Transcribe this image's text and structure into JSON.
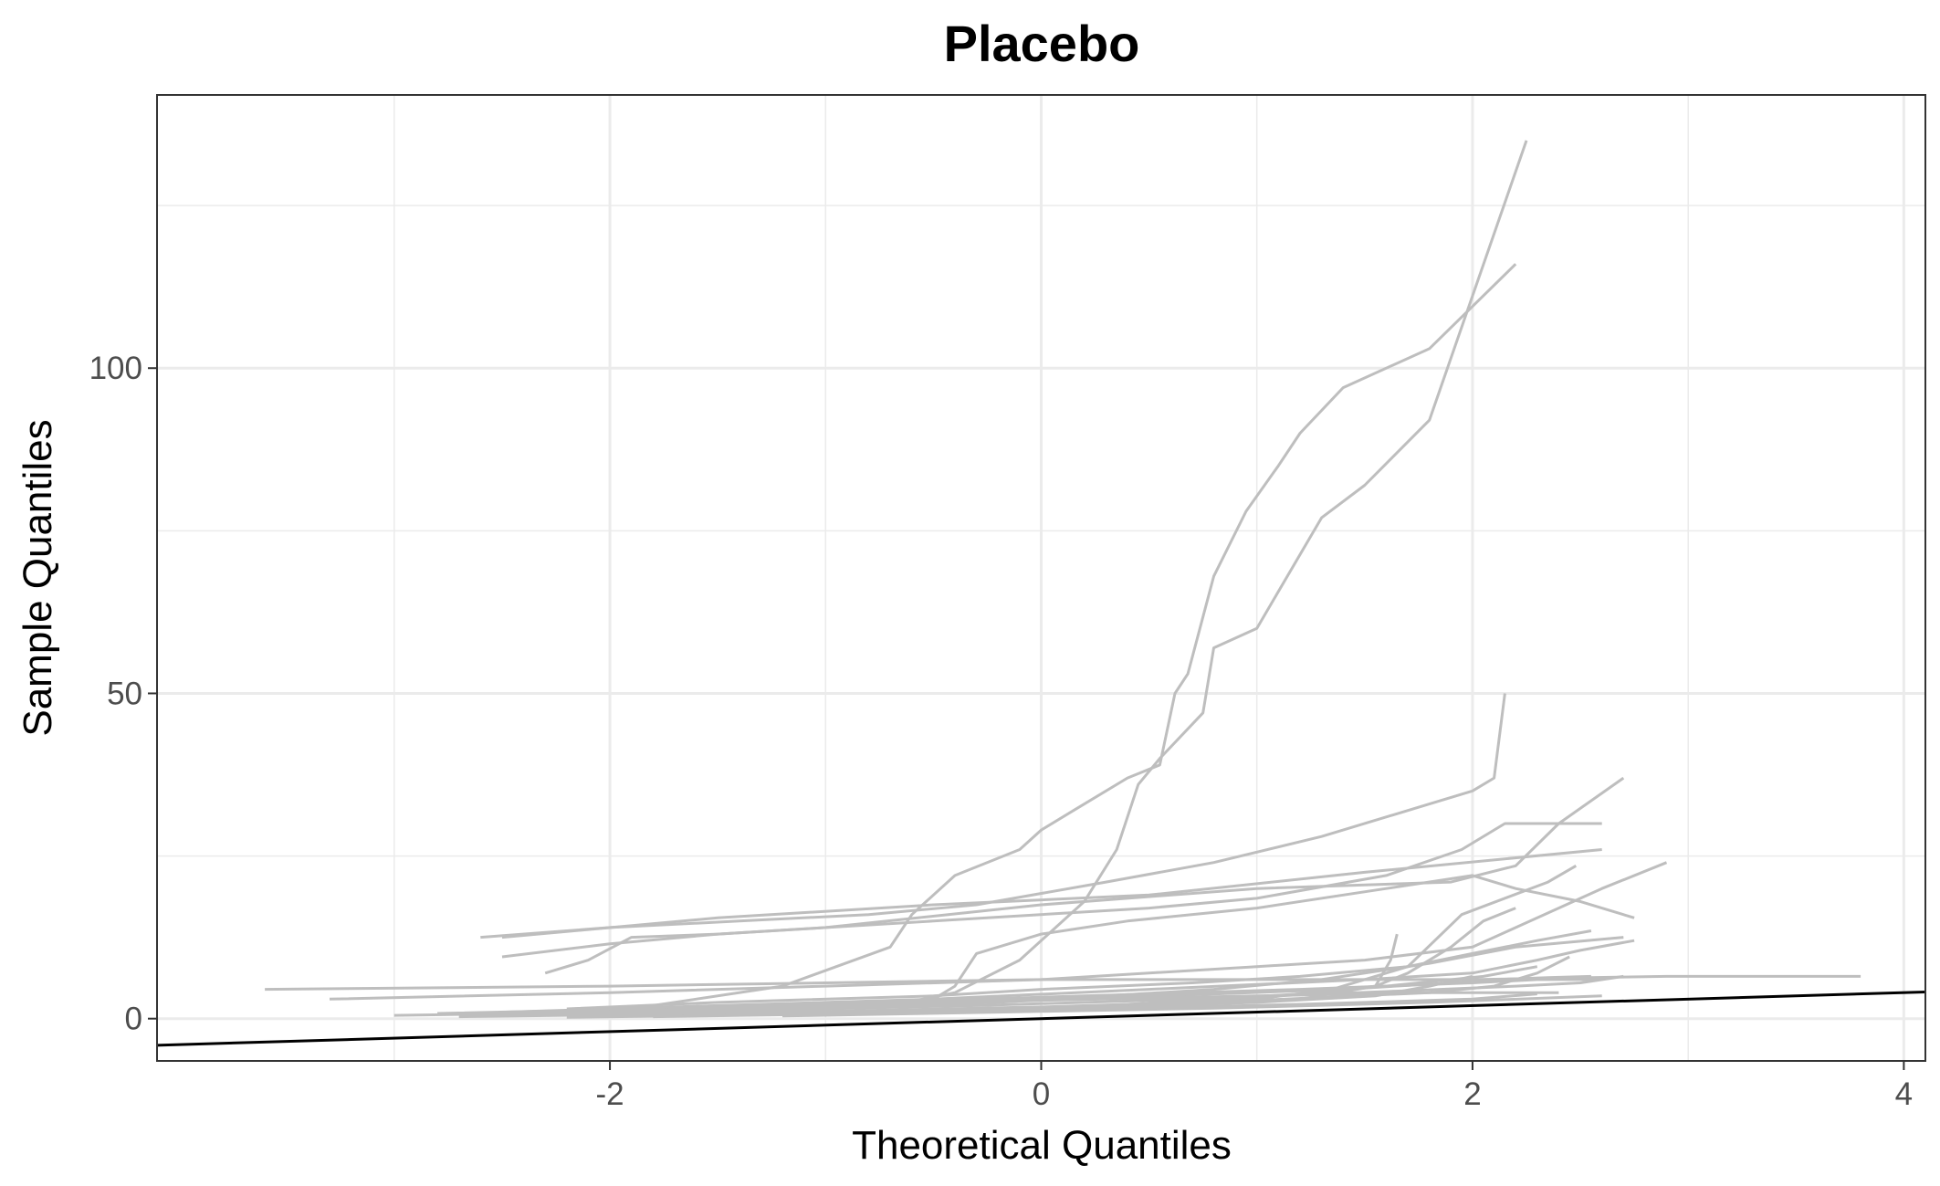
{
  "chart_data": {
    "type": "line",
    "title": "Placebo",
    "xlabel": "Theoretical Quantiles",
    "ylabel": "Sample Quantiles",
    "xlim": [
      -4.1,
      4.1
    ],
    "ylim": [
      -6.5,
      142
    ],
    "x_ticks": [
      -2,
      0,
      2,
      4
    ],
    "x_tick_labels": [
      "-2",
      "0",
      "2",
      "4"
    ],
    "y_ticks": [
      0,
      50,
      100
    ],
    "y_tick_labels": [
      "0",
      "50",
      "100"
    ],
    "x_minor_ticks": [
      -3,
      -1,
      1,
      3
    ],
    "y_minor_ticks": [
      25,
      75,
      125
    ],
    "grid": true,
    "legend": "none",
    "colors": {
      "series": "#bebebe",
      "reference": "#000000",
      "grid": "#ebebeb",
      "panel_border": "#333333"
    },
    "reference_line": {
      "intercept": 0,
      "slope": 1
    },
    "series": [
      {
        "x": [
          -2.2,
          -1.8,
          -1.2,
          -0.7,
          -0.6,
          -0.4,
          -0.1,
          0.0,
          0.15,
          0.4,
          0.55,
          0.62,
          0.68,
          0.8,
          0.95,
          1.1,
          1.2,
          1.4,
          1.8,
          2.2
        ],
        "y": [
          1.0,
          2.0,
          5.0,
          11.0,
          16.0,
          22.0,
          26.0,
          29.0,
          32.0,
          37.0,
          39.0,
          50.0,
          53.0,
          68.0,
          78.0,
          85.0,
          90.0,
          97.0,
          103.0,
          116.0
        ]
      },
      {
        "x": [
          -2.4,
          -1.5,
          -0.7,
          -0.4,
          -0.1,
          0.2,
          0.35,
          0.45,
          0.55,
          0.75,
          0.8,
          1.0,
          1.3,
          1.5,
          1.8,
          2.25
        ],
        "y": [
          0.5,
          1.0,
          2.0,
          4.0,
          9.0,
          18.0,
          26.0,
          36.0,
          40.0,
          47.0,
          57.0,
          60.0,
          77.0,
          82.0,
          92.0,
          135.0
        ]
      },
      {
        "x": [
          -2.6,
          -2.0,
          -1.4,
          -0.8,
          -0.3,
          0.3,
          0.8,
          1.3,
          1.8,
          2.0,
          2.1,
          2.15
        ],
        "y": [
          12.5,
          14.0,
          15.0,
          16.0,
          17.5,
          21.0,
          24.0,
          28.0,
          33.0,
          35.0,
          37.0,
          50.0
        ]
      },
      {
        "x": [
          -2.5,
          -2.0,
          -1.5,
          -0.5,
          0.5,
          1.0,
          1.6,
          1.95,
          2.15,
          2.6
        ],
        "y": [
          9.5,
          11.5,
          13.0,
          15.0,
          17.0,
          18.5,
          22.0,
          26.0,
          30.0,
          30.0
        ]
      },
      {
        "x": [
          -2.3,
          -2.1,
          -1.9,
          -1.5,
          -1.0,
          0.0,
          1.0,
          1.9,
          2.2,
          2.4,
          2.7
        ],
        "y": [
          7.0,
          9.0,
          12.5,
          13.0,
          14.0,
          17.5,
          20.0,
          21.0,
          23.5,
          30.0,
          37.0
        ]
      },
      {
        "x": [
          -2.5,
          -1.5,
          -0.5,
          0.5,
          1.5,
          2.6
        ],
        "y": [
          12.5,
          15.5,
          17.5,
          19.0,
          22.5,
          26.0
        ]
      },
      {
        "x": [
          -3.3,
          -2.0,
          -1.0,
          0.0,
          0.5,
          1.0,
          1.5,
          2.0,
          2.6,
          2.9
        ],
        "y": [
          3.0,
          4.0,
          5.0,
          6.0,
          7.0,
          8.0,
          9.0,
          11.0,
          20.0,
          24.0
        ]
      },
      {
        "x": [
          -3.6,
          -2.0,
          -1.0,
          0.0,
          1.0,
          2.0,
          2.9,
          3.8
        ],
        "y": [
          4.5,
          5.0,
          5.5,
          6.0,
          6.0,
          6.0,
          6.5,
          6.5
        ]
      },
      {
        "x": [
          -3.0,
          -2.0,
          -1.0,
          -0.5,
          -0.4,
          -0.3,
          0.0,
          0.4,
          1.0,
          1.6,
          2.0,
          2.2,
          2.5,
          2.75
        ],
        "y": [
          0.5,
          1.0,
          2.0,
          3.0,
          5.0,
          10.0,
          13.0,
          15.0,
          17.0,
          20.0,
          22.0,
          20.0,
          18.0,
          15.5
        ]
      },
      {
        "x": [
          -2.2,
          -1.5,
          -0.5,
          0.0,
          0.7,
          1.2,
          1.7,
          2.0,
          2.3,
          2.55
        ],
        "y": [
          1.5,
          2.5,
          3.5,
          4.5,
          5.5,
          6.5,
          8.0,
          10.0,
          12.0,
          13.5
        ]
      },
      {
        "x": [
          -1.8,
          -1.0,
          -0.2,
          0.3,
          0.8,
          1.3,
          1.8,
          2.2,
          2.7
        ],
        "y": [
          0.8,
          1.5,
          2.5,
          3.5,
          4.5,
          6.0,
          8.5,
          11.0,
          12.5
        ]
      },
      {
        "x": [
          -2.0,
          -1.0,
          0.0,
          0.6,
          1.0,
          1.35,
          1.7,
          1.95,
          2.35,
          2.48
        ],
        "y": [
          0.5,
          1.0,
          1.5,
          2.5,
          3.0,
          4.5,
          8.0,
          16.0,
          21.0,
          23.5
        ]
      },
      {
        "x": [
          -2.2,
          -1.3,
          -0.3,
          0.3,
          0.8,
          1.3,
          1.55,
          1.7,
          1.9,
          2.05,
          2.2
        ],
        "y": [
          0.2,
          0.6,
          1.2,
          2.0,
          3.0,
          4.0,
          5.0,
          7.0,
          11.0,
          15.0,
          17.0
        ]
      },
      {
        "x": [
          -2.7,
          -1.5,
          -0.5,
          0.5,
          1.2,
          1.55,
          1.62,
          1.65
        ],
        "y": [
          0.3,
          0.8,
          1.2,
          2.0,
          3.0,
          5.0,
          9.0,
          13.0
        ]
      },
      {
        "x": [
          -2.4,
          -1.2,
          0.0,
          1.0,
          1.8,
          2.1,
          2.3,
          2.45
        ],
        "y": [
          0.5,
          1.0,
          1.8,
          2.8,
          4.0,
          5.0,
          7.0,
          9.5
        ]
      },
      {
        "x": [
          -2.5,
          -1.5,
          -0.5,
          0.5,
          1.5,
          2.0,
          2.3,
          2.5,
          2.75
        ],
        "y": [
          1.0,
          2.0,
          3.0,
          4.5,
          6.0,
          7.0,
          9.0,
          10.5,
          12.0
        ]
      },
      {
        "x": [
          -2.8,
          -1.8,
          -0.8,
          0.2,
          1.2,
          2.0,
          2.3,
          2.6
        ],
        "y": [
          0.8,
          1.5,
          2.5,
          3.5,
          4.5,
          5.5,
          6.0,
          6.0
        ]
      },
      {
        "x": [
          -2.6,
          -1.6,
          -0.6,
          0.4,
          1.4,
          1.9,
          2.1,
          2.35,
          2.55
        ],
        "y": [
          0.6,
          1.5,
          2.5,
          3.3,
          4.5,
          5.5,
          6.0,
          6.3,
          6.5
        ]
      },
      {
        "x": [
          -2.3,
          -1.3,
          -0.3,
          0.7,
          1.7,
          2.2,
          2.5,
          2.7
        ],
        "y": [
          0.8,
          1.3,
          2.0,
          3.0,
          4.3,
          5.0,
          5.5,
          6.5
        ]
      },
      {
        "x": [
          -2.0,
          -1.0,
          0.0,
          1.0,
          1.8,
          2.4
        ],
        "y": [
          1.0,
          1.8,
          2.8,
          3.5,
          4.0,
          4.0
        ]
      },
      {
        "x": [
          -1.6,
          -0.8,
          0.2,
          1.0,
          1.55,
          1.8,
          2.0
        ],
        "y": [
          0.5,
          1.0,
          1.5,
          2.5,
          3.5,
          5.0,
          6.5
        ]
      },
      {
        "x": [
          -2.1,
          -1.1,
          -0.1,
          0.9,
          1.6,
          2.05,
          2.3
        ],
        "y": [
          1.0,
          2.0,
          3.0,
          4.0,
          5.0,
          6.5,
          8.0
        ]
      },
      {
        "x": [
          -1.2,
          -0.2,
          0.8,
          1.8,
          2.6
        ],
        "y": [
          0.4,
          1.0,
          1.6,
          2.5,
          3.5
        ]
      },
      {
        "x": [
          -1.8,
          -0.8,
          0.2,
          1.2,
          2.0,
          2.3
        ],
        "y": [
          0.3,
          0.8,
          1.4,
          2.2,
          3.0,
          3.8
        ]
      }
    ]
  }
}
